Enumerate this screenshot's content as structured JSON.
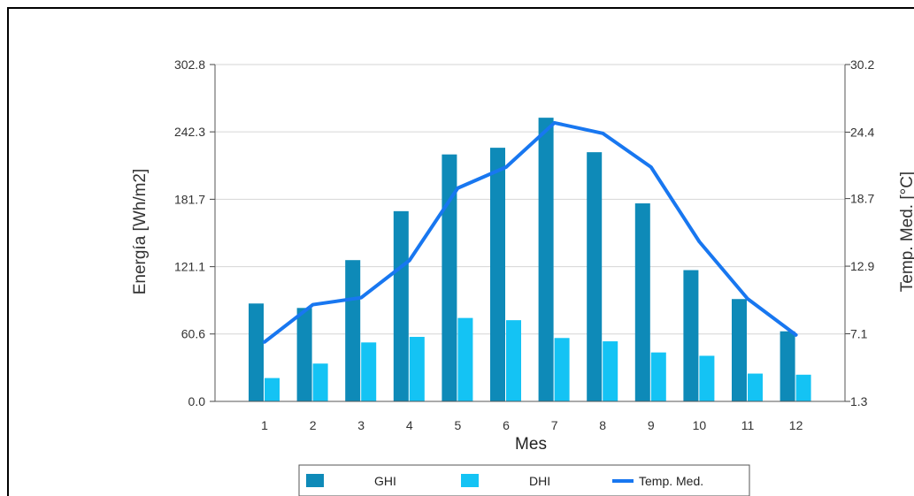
{
  "chart_data": {
    "type": "bar",
    "title": "",
    "categories": [
      "1",
      "2",
      "3",
      "4",
      "5",
      "6",
      "7",
      "8",
      "9",
      "10",
      "11",
      "12"
    ],
    "xlabel": "Mes",
    "ylabel": "Energía [Wh/m2]",
    "y2label": "Temp. Med. [°C]",
    "ylim": [
      0.0,
      302.8
    ],
    "y2lim": [
      1.3,
      30.2
    ],
    "yticks": [
      "0.0",
      "60.6",
      "121.1",
      "181.7",
      "242.3",
      "302.8"
    ],
    "y2ticks": [
      "1.3",
      "7.1",
      "12.9",
      "18.7",
      "24.4",
      "30.2"
    ],
    "grid": "horizontal",
    "legend_placement": "bottom",
    "series": [
      {
        "name": "GHI",
        "type": "bar",
        "axis": "left",
        "color": "#0e8ab8",
        "values": [
          88,
          84,
          127,
          171,
          222,
          228,
          255,
          224,
          178,
          118,
          92,
          63
        ]
      },
      {
        "name": "DHI",
        "type": "bar",
        "axis": "left",
        "color": "#14c3f4",
        "values": [
          21,
          34,
          53,
          58,
          75,
          73,
          57,
          54,
          44,
          41,
          25,
          24
        ]
      },
      {
        "name": "Temp. Med.",
        "type": "line",
        "axis": "right",
        "color": "#1877f0",
        "values": [
          6.4,
          9.6,
          10.2,
          13.4,
          19.6,
          21.4,
          25.2,
          24.3,
          21.4,
          15.0,
          10.1,
          7.0
        ]
      }
    ]
  }
}
